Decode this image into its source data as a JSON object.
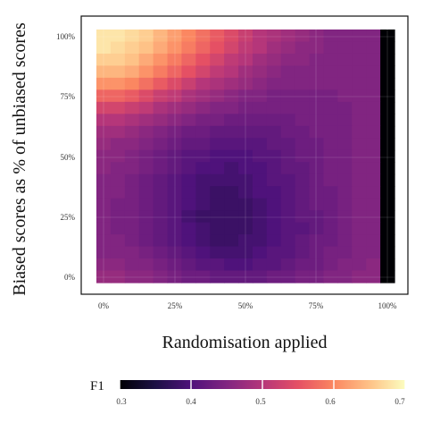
{
  "chart_data": {
    "type": "heatmap",
    "xlabel": "Randomisation applied",
    "ylabel": "Biased scores as % of unbiased scores",
    "x_tick_labels": [
      "0%",
      "25%",
      "50%",
      "75%",
      "100%"
    ],
    "y_tick_labels": [
      "0%",
      "25%",
      "50%",
      "75%",
      "100%"
    ],
    "x_range": [
      0,
      100
    ],
    "y_range": [
      0,
      100
    ],
    "grid_resolution": 20,
    "colormap": "magma",
    "legend": {
      "title": "F1",
      "placement": "bottom",
      "min": 0.3,
      "max": 0.7,
      "tick_labels": [
        "0.3",
        "0.4",
        "0.5",
        "0.6",
        "0.7"
      ],
      "tick_values": [
        0.3,
        0.4,
        0.5,
        0.6,
        0.7
      ]
    },
    "rows_top_to_bottom": [
      [
        0.68,
        0.68,
        0.67,
        0.66,
        0.64,
        0.62,
        0.6,
        0.58,
        0.56,
        0.54,
        0.52,
        0.5,
        0.49,
        0.48,
        0.47,
        0.46,
        0.45,
        0.45,
        0.45,
        0.45,
        0.02
      ],
      [
        0.68,
        0.67,
        0.66,
        0.65,
        0.63,
        0.61,
        0.59,
        0.57,
        0.55,
        0.53,
        0.51,
        0.5,
        0.48,
        0.47,
        0.46,
        0.46,
        0.45,
        0.45,
        0.45,
        0.45,
        0.02
      ],
      [
        0.66,
        0.66,
        0.65,
        0.63,
        0.61,
        0.59,
        0.57,
        0.55,
        0.53,
        0.51,
        0.5,
        0.48,
        0.47,
        0.46,
        0.46,
        0.45,
        0.45,
        0.45,
        0.45,
        0.45,
        0.02
      ],
      [
        0.64,
        0.64,
        0.63,
        0.61,
        0.59,
        0.57,
        0.55,
        0.53,
        0.51,
        0.5,
        0.48,
        0.47,
        0.46,
        0.45,
        0.45,
        0.45,
        0.45,
        0.45,
        0.45,
        0.45,
        0.02
      ],
      [
        0.61,
        0.61,
        0.6,
        0.58,
        0.56,
        0.54,
        0.52,
        0.5,
        0.49,
        0.48,
        0.47,
        0.46,
        0.45,
        0.45,
        0.45,
        0.45,
        0.45,
        0.45,
        0.45,
        0.45,
        0.02
      ],
      [
        0.57,
        0.57,
        0.56,
        0.54,
        0.52,
        0.51,
        0.49,
        0.48,
        0.47,
        0.46,
        0.45,
        0.45,
        0.44,
        0.44,
        0.44,
        0.44,
        0.44,
        0.45,
        0.45,
        0.45,
        0.02
      ],
      [
        0.53,
        0.53,
        0.52,
        0.51,
        0.49,
        0.48,
        0.47,
        0.46,
        0.45,
        0.45,
        0.44,
        0.44,
        0.44,
        0.44,
        0.44,
        0.44,
        0.44,
        0.44,
        0.45,
        0.45,
        0.02
      ],
      [
        0.5,
        0.5,
        0.49,
        0.48,
        0.47,
        0.46,
        0.45,
        0.44,
        0.44,
        0.43,
        0.43,
        0.43,
        0.43,
        0.43,
        0.44,
        0.44,
        0.44,
        0.44,
        0.45,
        0.45,
        0.02
      ],
      [
        0.48,
        0.48,
        0.47,
        0.46,
        0.45,
        0.44,
        0.43,
        0.43,
        0.42,
        0.42,
        0.42,
        0.42,
        0.42,
        0.43,
        0.43,
        0.44,
        0.44,
        0.44,
        0.45,
        0.45,
        0.02
      ],
      [
        0.47,
        0.46,
        0.46,
        0.45,
        0.44,
        0.43,
        0.42,
        0.42,
        0.41,
        0.41,
        0.41,
        0.41,
        0.42,
        0.42,
        0.43,
        0.43,
        0.44,
        0.44,
        0.45,
        0.45,
        0.02
      ],
      [
        0.46,
        0.46,
        0.45,
        0.44,
        0.43,
        0.42,
        0.41,
        0.41,
        0.4,
        0.4,
        0.4,
        0.41,
        0.41,
        0.42,
        0.43,
        0.43,
        0.44,
        0.44,
        0.45,
        0.45,
        0.02
      ],
      [
        0.46,
        0.45,
        0.45,
        0.44,
        0.43,
        0.42,
        0.41,
        0.4,
        0.4,
        0.39,
        0.4,
        0.4,
        0.41,
        0.42,
        0.42,
        0.43,
        0.44,
        0.44,
        0.45,
        0.45,
        0.02
      ],
      [
        0.45,
        0.45,
        0.44,
        0.43,
        0.42,
        0.41,
        0.4,
        0.39,
        0.39,
        0.39,
        0.39,
        0.4,
        0.41,
        0.41,
        0.42,
        0.43,
        0.44,
        0.44,
        0.45,
        0.45,
        0.02
      ],
      [
        0.45,
        0.45,
        0.44,
        0.43,
        0.42,
        0.41,
        0.4,
        0.39,
        0.38,
        0.38,
        0.39,
        0.4,
        0.4,
        0.41,
        0.42,
        0.43,
        0.43,
        0.44,
        0.45,
        0.45,
        0.02
      ],
      [
        0.45,
        0.44,
        0.44,
        0.43,
        0.42,
        0.41,
        0.4,
        0.39,
        0.38,
        0.38,
        0.38,
        0.39,
        0.4,
        0.41,
        0.42,
        0.43,
        0.43,
        0.44,
        0.45,
        0.45,
        0.02
      ],
      [
        0.45,
        0.44,
        0.44,
        0.43,
        0.42,
        0.41,
        0.39,
        0.38,
        0.38,
        0.38,
        0.38,
        0.39,
        0.4,
        0.41,
        0.42,
        0.42,
        0.43,
        0.44,
        0.45,
        0.45,
        0.02
      ],
      [
        0.45,
        0.44,
        0.44,
        0.43,
        0.42,
        0.41,
        0.4,
        0.39,
        0.38,
        0.38,
        0.38,
        0.39,
        0.4,
        0.41,
        0.41,
        0.42,
        0.43,
        0.44,
        0.45,
        0.45,
        0.02
      ],
      [
        0.45,
        0.45,
        0.44,
        0.43,
        0.42,
        0.41,
        0.4,
        0.39,
        0.38,
        0.38,
        0.39,
        0.39,
        0.4,
        0.41,
        0.42,
        0.43,
        0.43,
        0.44,
        0.45,
        0.45,
        0.02
      ],
      [
        0.45,
        0.45,
        0.45,
        0.44,
        0.43,
        0.42,
        0.41,
        0.4,
        0.39,
        0.39,
        0.39,
        0.4,
        0.41,
        0.41,
        0.42,
        0.43,
        0.44,
        0.44,
        0.45,
        0.45,
        0.02
      ],
      [
        0.46,
        0.46,
        0.45,
        0.45,
        0.44,
        0.43,
        0.42,
        0.41,
        0.41,
        0.4,
        0.4,
        0.41,
        0.41,
        0.42,
        0.43,
        0.43,
        0.44,
        0.45,
        0.45,
        0.46,
        0.02
      ],
      [
        0.47,
        0.47,
        0.46,
        0.46,
        0.45,
        0.44,
        0.43,
        0.43,
        0.42,
        0.42,
        0.42,
        0.42,
        0.43,
        0.43,
        0.44,
        0.44,
        0.45,
        0.45,
        0.46,
        0.46,
        0.02
      ]
    ]
  }
}
